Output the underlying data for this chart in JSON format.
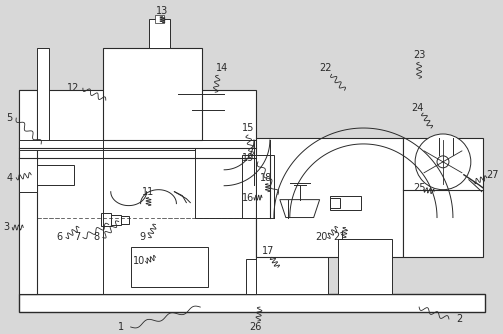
{
  "bg_color": "#d8d8d8",
  "line_color": "#2a2a2a",
  "fig_width": 5.03,
  "fig_height": 3.34,
  "dpi": 100
}
